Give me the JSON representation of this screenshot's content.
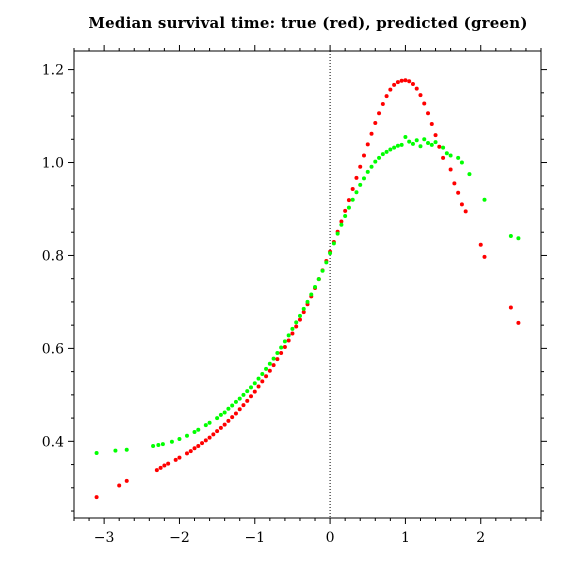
{
  "chart_data": {
    "type": "scatter",
    "title": "Median survival time: true (red), predicted (green)",
    "xlabel": "",
    "ylabel": "",
    "xlim": [
      -3.4,
      2.8
    ],
    "ylim": [
      0.235,
      1.24
    ],
    "x_ticks": [
      -3,
      -2,
      -1,
      0,
      1,
      2
    ],
    "x_tick_labels": [
      "−3",
      "−2",
      "−1",
      "0",
      "1",
      "2"
    ],
    "y_ticks": [
      0.4,
      0.6,
      0.8,
      1.0,
      1.2
    ],
    "y_tick_labels": [
      "0.4",
      "0.6",
      "0.8",
      "1.0",
      "1.2"
    ],
    "reference_line": {
      "x": 0,
      "style": "dotted"
    },
    "grid": false,
    "colors": {
      "true": "#ff0000",
      "predicted": "#00ff00",
      "axes": "#000000",
      "background": "#ffffff"
    },
    "series": [
      {
        "color": "#ff0000",
        "points": [
          [
            -3.1,
            0.28
          ],
          [
            -2.8,
            0.305
          ],
          [
            -2.7,
            0.315
          ],
          [
            -2.3,
            0.338
          ],
          [
            -2.25,
            0.343
          ],
          [
            -2.2,
            0.348
          ],
          [
            -2.15,
            0.352
          ],
          [
            -2.05,
            0.36
          ],
          [
            -2.0,
            0.365
          ],
          [
            -1.9,
            0.374
          ],
          [
            -1.85,
            0.379
          ],
          [
            -1.8,
            0.385
          ],
          [
            -1.75,
            0.39
          ],
          [
            -1.7,
            0.396
          ],
          [
            -1.65,
            0.402
          ],
          [
            -1.6,
            0.408
          ],
          [
            -1.55,
            0.415
          ],
          [
            -1.5,
            0.422
          ],
          [
            -1.45,
            0.429
          ],
          [
            -1.4,
            0.436
          ],
          [
            -1.35,
            0.444
          ],
          [
            -1.3,
            0.452
          ],
          [
            -1.25,
            0.46
          ],
          [
            -1.2,
            0.469
          ],
          [
            -1.15,
            0.478
          ],
          [
            -1.1,
            0.487
          ],
          [
            -1.05,
            0.497
          ],
          [
            -1.0,
            0.507
          ],
          [
            -0.95,
            0.518
          ],
          [
            -0.9,
            0.529
          ],
          [
            -0.85,
            0.54
          ],
          [
            -0.8,
            0.552
          ],
          [
            -0.75,
            0.564
          ],
          [
            -0.7,
            0.577
          ],
          [
            -0.65,
            0.59
          ],
          [
            -0.6,
            0.603
          ],
          [
            -0.55,
            0.617
          ],
          [
            -0.5,
            0.632
          ],
          [
            -0.45,
            0.647
          ],
          [
            -0.4,
            0.662
          ],
          [
            -0.35,
            0.678
          ],
          [
            -0.3,
            0.695
          ],
          [
            -0.25,
            0.712
          ],
          [
            -0.2,
            0.73
          ],
          [
            -0.15,
            0.749
          ],
          [
            -0.1,
            0.768
          ],
          [
            -0.05,
            0.788
          ],
          [
            0.0,
            0.808
          ],
          [
            0.05,
            0.829
          ],
          [
            0.1,
            0.851
          ],
          [
            0.15,
            0.873
          ],
          [
            0.2,
            0.896
          ],
          [
            0.25,
            0.919
          ],
          [
            0.3,
            0.943
          ],
          [
            0.35,
            0.967
          ],
          [
            0.4,
            0.991
          ],
          [
            0.45,
            1.015
          ],
          [
            0.5,
            1.039
          ],
          [
            0.55,
            1.062
          ],
          [
            0.6,
            1.085
          ],
          [
            0.65,
            1.106
          ],
          [
            0.7,
            1.126
          ],
          [
            0.75,
            1.143
          ],
          [
            0.8,
            1.157
          ],
          [
            0.85,
            1.167
          ],
          [
            0.9,
            1.173
          ],
          [
            0.95,
            1.176
          ],
          [
            1.0,
            1.177
          ],
          [
            1.05,
            1.175
          ],
          [
            1.1,
            1.169
          ],
          [
            1.15,
            1.159
          ],
          [
            1.2,
            1.145
          ],
          [
            1.25,
            1.127
          ],
          [
            1.3,
            1.106
          ],
          [
            1.35,
            1.083
          ],
          [
            1.4,
            1.059
          ],
          [
            1.45,
            1.034
          ],
          [
            1.5,
            1.01
          ],
          [
            1.6,
            0.985
          ],
          [
            1.65,
            0.955
          ],
          [
            1.7,
            0.935
          ],
          [
            1.75,
            0.91
          ],
          [
            1.8,
            0.895
          ],
          [
            2.0,
            0.823
          ],
          [
            2.05,
            0.797
          ],
          [
            2.4,
            0.688
          ],
          [
            2.5,
            0.655
          ]
        ]
      },
      {
        "color": "#00ff00",
        "points": [
          [
            -3.1,
            0.375
          ],
          [
            -2.85,
            0.38
          ],
          [
            -2.7,
            0.382
          ],
          [
            -2.35,
            0.39
          ],
          [
            -2.28,
            0.392
          ],
          [
            -2.22,
            0.394
          ],
          [
            -2.1,
            0.399
          ],
          [
            -2.0,
            0.405
          ],
          [
            -1.9,
            0.412
          ],
          [
            -1.8,
            0.42
          ],
          [
            -1.75,
            0.425
          ],
          [
            -1.65,
            0.435
          ],
          [
            -1.6,
            0.44
          ],
          [
            -1.5,
            0.45
          ],
          [
            -1.45,
            0.457
          ],
          [
            -1.4,
            0.462
          ],
          [
            -1.35,
            0.47
          ],
          [
            -1.3,
            0.477
          ],
          [
            -1.25,
            0.485
          ],
          [
            -1.2,
            0.492
          ],
          [
            -1.15,
            0.5
          ],
          [
            -1.1,
            0.508
          ],
          [
            -1.05,
            0.516
          ],
          [
            -1.0,
            0.525
          ],
          [
            -0.95,
            0.535
          ],
          [
            -0.9,
            0.545
          ],
          [
            -0.85,
            0.556
          ],
          [
            -0.8,
            0.567
          ],
          [
            -0.75,
            0.578
          ],
          [
            -0.7,
            0.59
          ],
          [
            -0.65,
            0.602
          ],
          [
            -0.6,
            0.615
          ],
          [
            -0.55,
            0.628
          ],
          [
            -0.5,
            0.642
          ],
          [
            -0.45,
            0.656
          ],
          [
            -0.4,
            0.67
          ],
          [
            -0.35,
            0.685
          ],
          [
            -0.3,
            0.7
          ],
          [
            -0.25,
            0.716
          ],
          [
            -0.2,
            0.732
          ],
          [
            -0.15,
            0.749
          ],
          [
            -0.1,
            0.767
          ],
          [
            -0.05,
            0.785
          ],
          [
            0.0,
            0.805
          ],
          [
            0.05,
            0.826
          ],
          [
            0.1,
            0.847
          ],
          [
            0.15,
            0.866
          ],
          [
            0.2,
            0.885
          ],
          [
            0.25,
            0.903
          ],
          [
            0.3,
            0.92
          ],
          [
            0.35,
            0.936
          ],
          [
            0.4,
            0.952
          ],
          [
            0.45,
            0.966
          ],
          [
            0.5,
            0.98
          ],
          [
            0.55,
            0.991
          ],
          [
            0.6,
            1.002
          ],
          [
            0.65,
            1.01
          ],
          [
            0.7,
            1.018
          ],
          [
            0.75,
            1.023
          ],
          [
            0.8,
            1.028
          ],
          [
            0.85,
            1.032
          ],
          [
            0.9,
            1.036
          ],
          [
            0.95,
            1.038
          ],
          [
            1.0,
            1.055
          ],
          [
            1.05,
            1.045
          ],
          [
            1.1,
            1.04
          ],
          [
            1.15,
            1.048
          ],
          [
            1.2,
            1.035
          ],
          [
            1.25,
            1.05
          ],
          [
            1.3,
            1.042
          ],
          [
            1.35,
            1.038
          ],
          [
            1.4,
            1.044
          ],
          [
            1.5,
            1.032
          ],
          [
            1.55,
            1.02
          ],
          [
            1.6,
            1.015
          ],
          [
            1.7,
            1.01
          ],
          [
            1.75,
            1.0
          ],
          [
            1.85,
            0.975
          ],
          [
            2.05,
            0.92
          ],
          [
            2.4,
            0.842
          ],
          [
            2.5,
            0.837
          ]
        ]
      }
    ]
  }
}
